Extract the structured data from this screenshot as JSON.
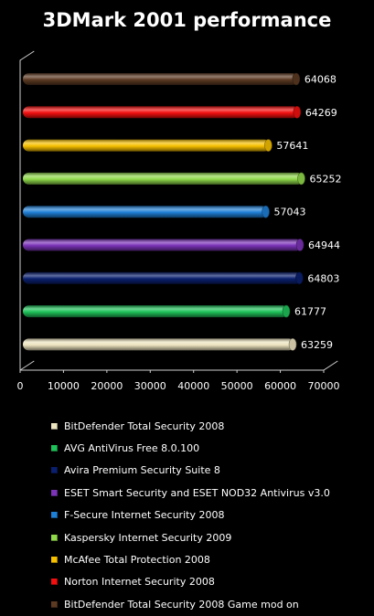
{
  "chart_data": {
    "type": "bar",
    "orientation": "horizontal",
    "title": "3DMark 2001 performance",
    "xlabel": "",
    "ylabel": "",
    "xlim": [
      0,
      70000
    ],
    "x_ticks": [
      "0",
      "10000",
      "20000",
      "30000",
      "40000",
      "50000",
      "60000",
      "70000"
    ],
    "grid": false,
    "legend_position": "bottom",
    "series": [
      {
        "name": "BitDefender Total Security 2008",
        "value": 63259,
        "value_label": "63259",
        "color": "#ece3bf"
      },
      {
        "name": "AVG AntiVirus Free 8.0.100",
        "value": 61777,
        "value_label": "61777",
        "color": "#1fc25a"
      },
      {
        "name": "Avira Premium Security Suite 8",
        "value": 64803,
        "value_label": "64803",
        "color": "#0a1f6e"
      },
      {
        "name": "ESET Smart Security and ESET NOD32 Antivirus v3.0",
        "value": 64944,
        "value_label": "64944",
        "color": "#7b33b8"
      },
      {
        "name": "F-Secure Internet Security 2008",
        "value": 57043,
        "value_label": "57043",
        "color": "#1e7fd6"
      },
      {
        "name": "Kaspersky Internet Security 2009",
        "value": 65252,
        "value_label": "65252",
        "color": "#8fd84a"
      },
      {
        "name": "McAfee Total Protection 2008",
        "value": 57641,
        "value_label": "57641",
        "color": "#f6c000"
      },
      {
        "name": "Norton Internet Security 2008",
        "value": 64269,
        "value_label": "64269",
        "color": "#f20f0f"
      },
      {
        "name": "BitDefender Total Security 2008 Game mod on",
        "value": 64068,
        "value_label": "64068",
        "color": "#5c3a22"
      }
    ]
  }
}
